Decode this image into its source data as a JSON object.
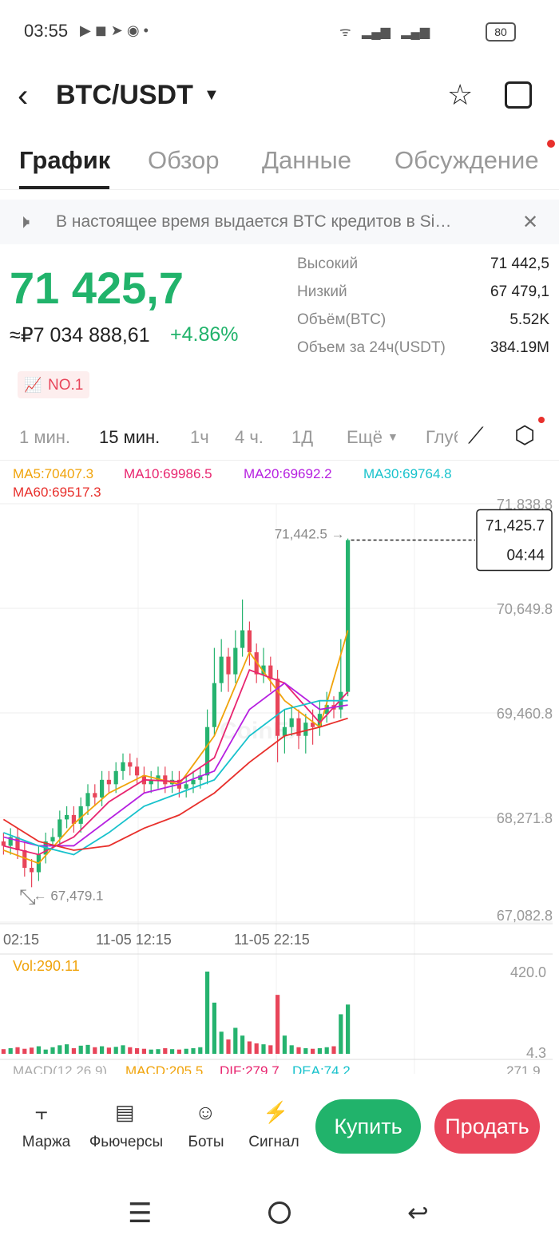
{
  "status_bar": {
    "time": "03:55",
    "battery": "80"
  },
  "header": {
    "pair": "BTC/USDT"
  },
  "tabs": [
    "График",
    "Обзор",
    "Данные",
    "Обсуждение"
  ],
  "notice": "В настоящее время выдается BTC кредитов в Si…",
  "price": {
    "last": "71 425,7",
    "fiat": "≈₽7 034 888,61",
    "change": "+4.86%"
  },
  "stats": [
    {
      "label": "Высокий",
      "value": "71 442,5"
    },
    {
      "label": "Низкий",
      "value": "67 479,1"
    },
    {
      "label": "Объём(BTC)",
      "value": "5.52K"
    },
    {
      "label": "Объем за 24ч(USDT)",
      "value": "384.19M"
    }
  ],
  "rank": "NO.1",
  "intervals": [
    "1 мин.",
    "15 мин.",
    "1ч",
    "4 ч.",
    "1Д",
    "Ещё",
    "Глуб"
  ],
  "ma_legend": [
    {
      "text": "MA5:70407.3",
      "color": "#f0a30a"
    },
    {
      "text": "MA10:69986.5",
      "color": "#e8256f"
    },
    {
      "text": "MA20:69692.2",
      "color": "#b620e0"
    },
    {
      "text": "MA30:69764.8",
      "color": "#18c2cc"
    },
    {
      "text": "MA60:69517.3",
      "color": "#e8302c"
    }
  ],
  "kline": {
    "ylim": [
      67082.8,
      71838.8
    ],
    "yticks": [
      {
        "value": 71838.8,
        "label": "71,838.8"
      },
      {
        "value": 70649.8,
        "label": "70,649.8"
      },
      {
        "value": 69460.8,
        "label": "69,460.8"
      },
      {
        "value": 68271.8,
        "label": "68,271.8"
      },
      {
        "value": 67082.8,
        "label": "67,082.8"
      }
    ],
    "open": [
      68000,
      67950,
      68050,
      67900,
      67700,
      67650,
      67850,
      68000,
      68050,
      68250,
      68300,
      68200,
      68400,
      68550,
      68500,
      68700,
      68650,
      68800,
      68900,
      68850,
      68750,
      68650,
      68700,
      68750,
      68650,
      68700,
      68600,
      68650,
      68700,
      68750,
      69300,
      69800,
      70100,
      69900,
      70200,
      70400,
      70150,
      69900,
      70000,
      69850,
      69200,
      69300,
      69400,
      69200,
      69350,
      69300,
      69450,
      69550,
      69500,
      69700
    ],
    "high": [
      68100,
      68150,
      68150,
      68000,
      67800,
      67950,
      68100,
      68150,
      68350,
      68400,
      68400,
      68500,
      68650,
      68650,
      68800,
      68800,
      68900,
      69000,
      69000,
      68950,
      68850,
      68800,
      68850,
      68850,
      68800,
      68800,
      68750,
      68800,
      68850,
      69500,
      70200,
      70300,
      70200,
      70400,
      70750,
      70500,
      70250,
      70200,
      70100,
      69950,
      69500,
      69550,
      69500,
      69450,
      69500,
      69600,
      69700,
      69650,
      70300,
      71442.5
    ],
    "low": [
      67850,
      67850,
      67800,
      67600,
      67479.1,
      67550,
      67750,
      67900,
      67950,
      68150,
      68100,
      68100,
      68300,
      68400,
      68400,
      68550,
      68550,
      68700,
      68750,
      68650,
      68550,
      68550,
      68600,
      68550,
      68550,
      68500,
      68500,
      68550,
      68600,
      68650,
      69200,
      69700,
      69700,
      69800,
      70100,
      70000,
      69800,
      69800,
      69700,
      68900,
      69000,
      69200,
      69050,
      69000,
      69100,
      69200,
      69350,
      69400,
      69400,
      69650
    ],
    "close": [
      67950,
      68050,
      67900,
      67700,
      67650,
      67850,
      68000,
      68050,
      68250,
      68300,
      68200,
      68400,
      68550,
      68500,
      68700,
      68650,
      68800,
      68900,
      68850,
      68750,
      68650,
      68700,
      68750,
      68650,
      68700,
      68600,
      68650,
      68700,
      68750,
      69300,
      69800,
      70100,
      69900,
      70200,
      70400,
      70150,
      69900,
      70000,
      69850,
      69200,
      69300,
      69400,
      69200,
      69350,
      69300,
      69450,
      69550,
      69500,
      69700,
      71425.7
    ],
    "ma_x": [
      0,
      5,
      10,
      15,
      20,
      25,
      30,
      35,
      40,
      45,
      49
    ],
    "ma": [
      {
        "color": "#f0a30a",
        "values": [
          67900,
          67750,
          68200,
          68550,
          68750,
          68650,
          69200,
          70150,
          69600,
          69300,
          70400
        ]
      },
      {
        "color": "#e8256f",
        "values": [
          67950,
          67850,
          68050,
          68450,
          68700,
          68680,
          68950,
          69950,
          69800,
          69350,
          69700
        ]
      },
      {
        "color": "#b620e0",
        "values": [
          68050,
          67950,
          67950,
          68250,
          68550,
          68650,
          68800,
          69500,
          69800,
          69500,
          69550
        ]
      },
      {
        "color": "#18c2cc",
        "values": [
          68100,
          67950,
          67850,
          68100,
          68400,
          68550,
          68700,
          69200,
          69500,
          69600,
          69600
        ]
      },
      {
        "color": "#e8302c",
        "values": [
          68250,
          68000,
          67900,
          67950,
          68150,
          68300,
          68550,
          68900,
          69200,
          69300,
          69400
        ]
      }
    ],
    "max_mark": {
      "value": 71442.5,
      "label": "71,442.5 →"
    },
    "min_mark": {
      "value": 67479.1,
      "label": "← 67,479.1"
    },
    "current": {
      "value": 71425.7,
      "label": "71,425.7",
      "countdown": "04:44"
    },
    "time_labels": [
      "02:15",
      "11-05 12:15",
      "11-05 22:15"
    ]
  },
  "volume": {
    "label": "Vol:290.11",
    "ylim": [
      4.3,
      420
    ],
    "yticks": [
      {
        "value": 420,
        "label": "420.0"
      },
      4.3
    ],
    "values": [
      20,
      25,
      30,
      22,
      28,
      35,
      18,
      30,
      40,
      45,
      25,
      38,
      42,
      30,
      35,
      28,
      32,
      40,
      30,
      25,
      22,
      18,
      20,
      25,
      20,
      18,
      22,
      25,
      30,
      420,
      260,
      110,
      70,
      130,
      90,
      60,
      50,
      45,
      40,
      300,
      90,
      40,
      30,
      25,
      22,
      25,
      30,
      35,
      200,
      250
    ]
  },
  "macd": [
    {
      "text": "MACD(12,26,9)",
      "color": "#aaaaaa"
    },
    {
      "text": "MACD:205.5",
      "color": "#f0a30a"
    },
    {
      "text": "DIF:279.7",
      "color": "#e8256f"
    },
    {
      "text": "DEA:74.2",
      "color": "#18c2cc"
    },
    {
      "text": "271.9",
      "color": "#999999"
    }
  ],
  "bottom_nav": [
    "Маржа",
    "Фьючерсы",
    "Боты",
    "Сигнал"
  ],
  "buy": "Купить",
  "sell": "Продать"
}
